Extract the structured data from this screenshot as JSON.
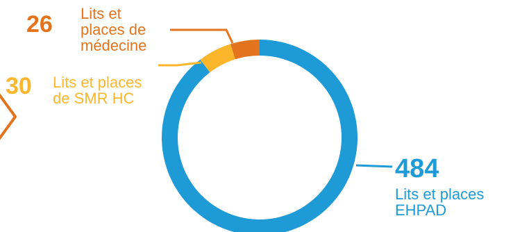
{
  "chart_data": {
    "type": "pie",
    "style": "donut",
    "start_angle": "top, clockwise",
    "categories": [
      "Lits et places EHPAD",
      "Lits et places de SMR HC",
      "Lits et places de médecine"
    ],
    "values": [
      484,
      30,
      26
    ],
    "colors": [
      "#1e9ad6",
      "#fbb62c",
      "#e3731c"
    ],
    "labels": [
      {
        "value": "484",
        "line1": "Lits et places",
        "line2": "EHPAD",
        "line3": ""
      },
      {
        "value": "30",
        "line1": "Lits et places",
        "line2": "de SMR HC",
        "line3": ""
      },
      {
        "value": "26",
        "line1": "Lits et",
        "line2": "places de",
        "line3": "médecine"
      }
    ]
  }
}
